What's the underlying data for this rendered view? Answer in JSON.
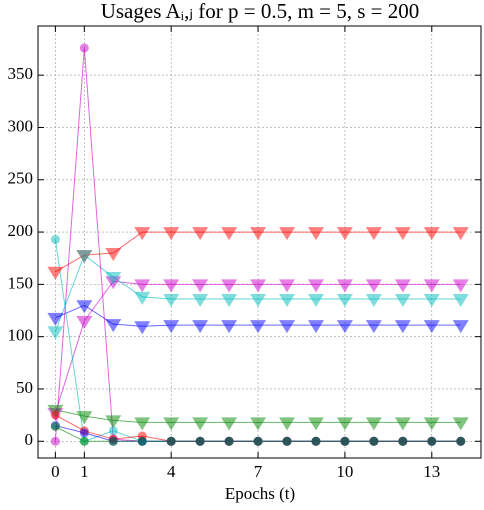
{
  "chart_data": {
    "type": "line",
    "title": "Usages Aᵢ,ⱼ for p = 0.5, m = 5, s = 200",
    "x_label": "Epochs (t)",
    "x": [
      0,
      1,
      2,
      3,
      4,
      5,
      6,
      7,
      8,
      9,
      10,
      11,
      12,
      13,
      14
    ],
    "xlim": [
      -0.6,
      14.7
    ],
    "xticks": [
      0,
      1,
      4,
      7,
      10,
      13
    ],
    "ylim": [
      -16,
      397
    ],
    "yticks": [
      0,
      50,
      100,
      150,
      200,
      250,
      300,
      350
    ],
    "grid": true,
    "series": [
      {
        "color": "#ff0000",
        "marker": "v",
        "values": [
          162,
          178,
          180,
          200,
          200,
          200,
          200,
          200,
          200,
          200,
          200,
          200,
          200,
          200,
          200
        ]
      },
      {
        "color": "#cc00cc",
        "marker": "v",
        "values": [
          27,
          115,
          153,
          150,
          150,
          150,
          150,
          150,
          150,
          150,
          150,
          150,
          150,
          150,
          150
        ]
      },
      {
        "color": "#00bbbb",
        "marker": "v",
        "values": [
          105,
          178,
          157,
          138,
          136,
          136,
          136,
          136,
          136,
          136,
          136,
          136,
          136,
          136,
          136
        ]
      },
      {
        "color": "#0000ff",
        "marker": "v",
        "values": [
          118,
          130,
          112,
          110,
          111,
          111,
          111,
          111,
          111,
          111,
          111,
          111,
          111,
          111,
          111
        ]
      },
      {
        "color": "#008800",
        "marker": "v",
        "values": [
          30,
          24,
          20,
          18,
          18,
          18,
          18,
          18,
          18,
          18,
          18,
          18,
          18,
          18,
          18
        ]
      },
      {
        "color": "#cc00cc",
        "marker": "o",
        "values": [
          0,
          376,
          2,
          0,
          0,
          0,
          0,
          0,
          0,
          0,
          0,
          0,
          0,
          0,
          0
        ]
      },
      {
        "color": "#00bbbb",
        "marker": "o",
        "values": [
          193,
          0,
          10,
          0,
          0,
          0,
          0,
          0,
          0,
          0,
          0,
          0,
          0,
          0,
          0
        ]
      },
      {
        "color": "#ff0000",
        "marker": "o",
        "values": [
          25,
          10,
          2,
          5,
          0,
          0,
          0,
          0,
          0,
          0,
          0,
          0,
          0,
          0,
          0
        ]
      },
      {
        "color": "#0000ff",
        "marker": "o",
        "values": [
          15,
          8,
          0,
          0,
          0,
          0,
          0,
          0,
          0,
          0,
          0,
          0,
          0,
          0,
          0
        ]
      },
      {
        "color": "#008800",
        "marker": "o",
        "values": [
          14,
          0,
          0,
          0,
          0,
          0,
          0,
          0,
          0,
          0,
          0,
          0,
          0,
          0,
          0
        ]
      }
    ]
  }
}
